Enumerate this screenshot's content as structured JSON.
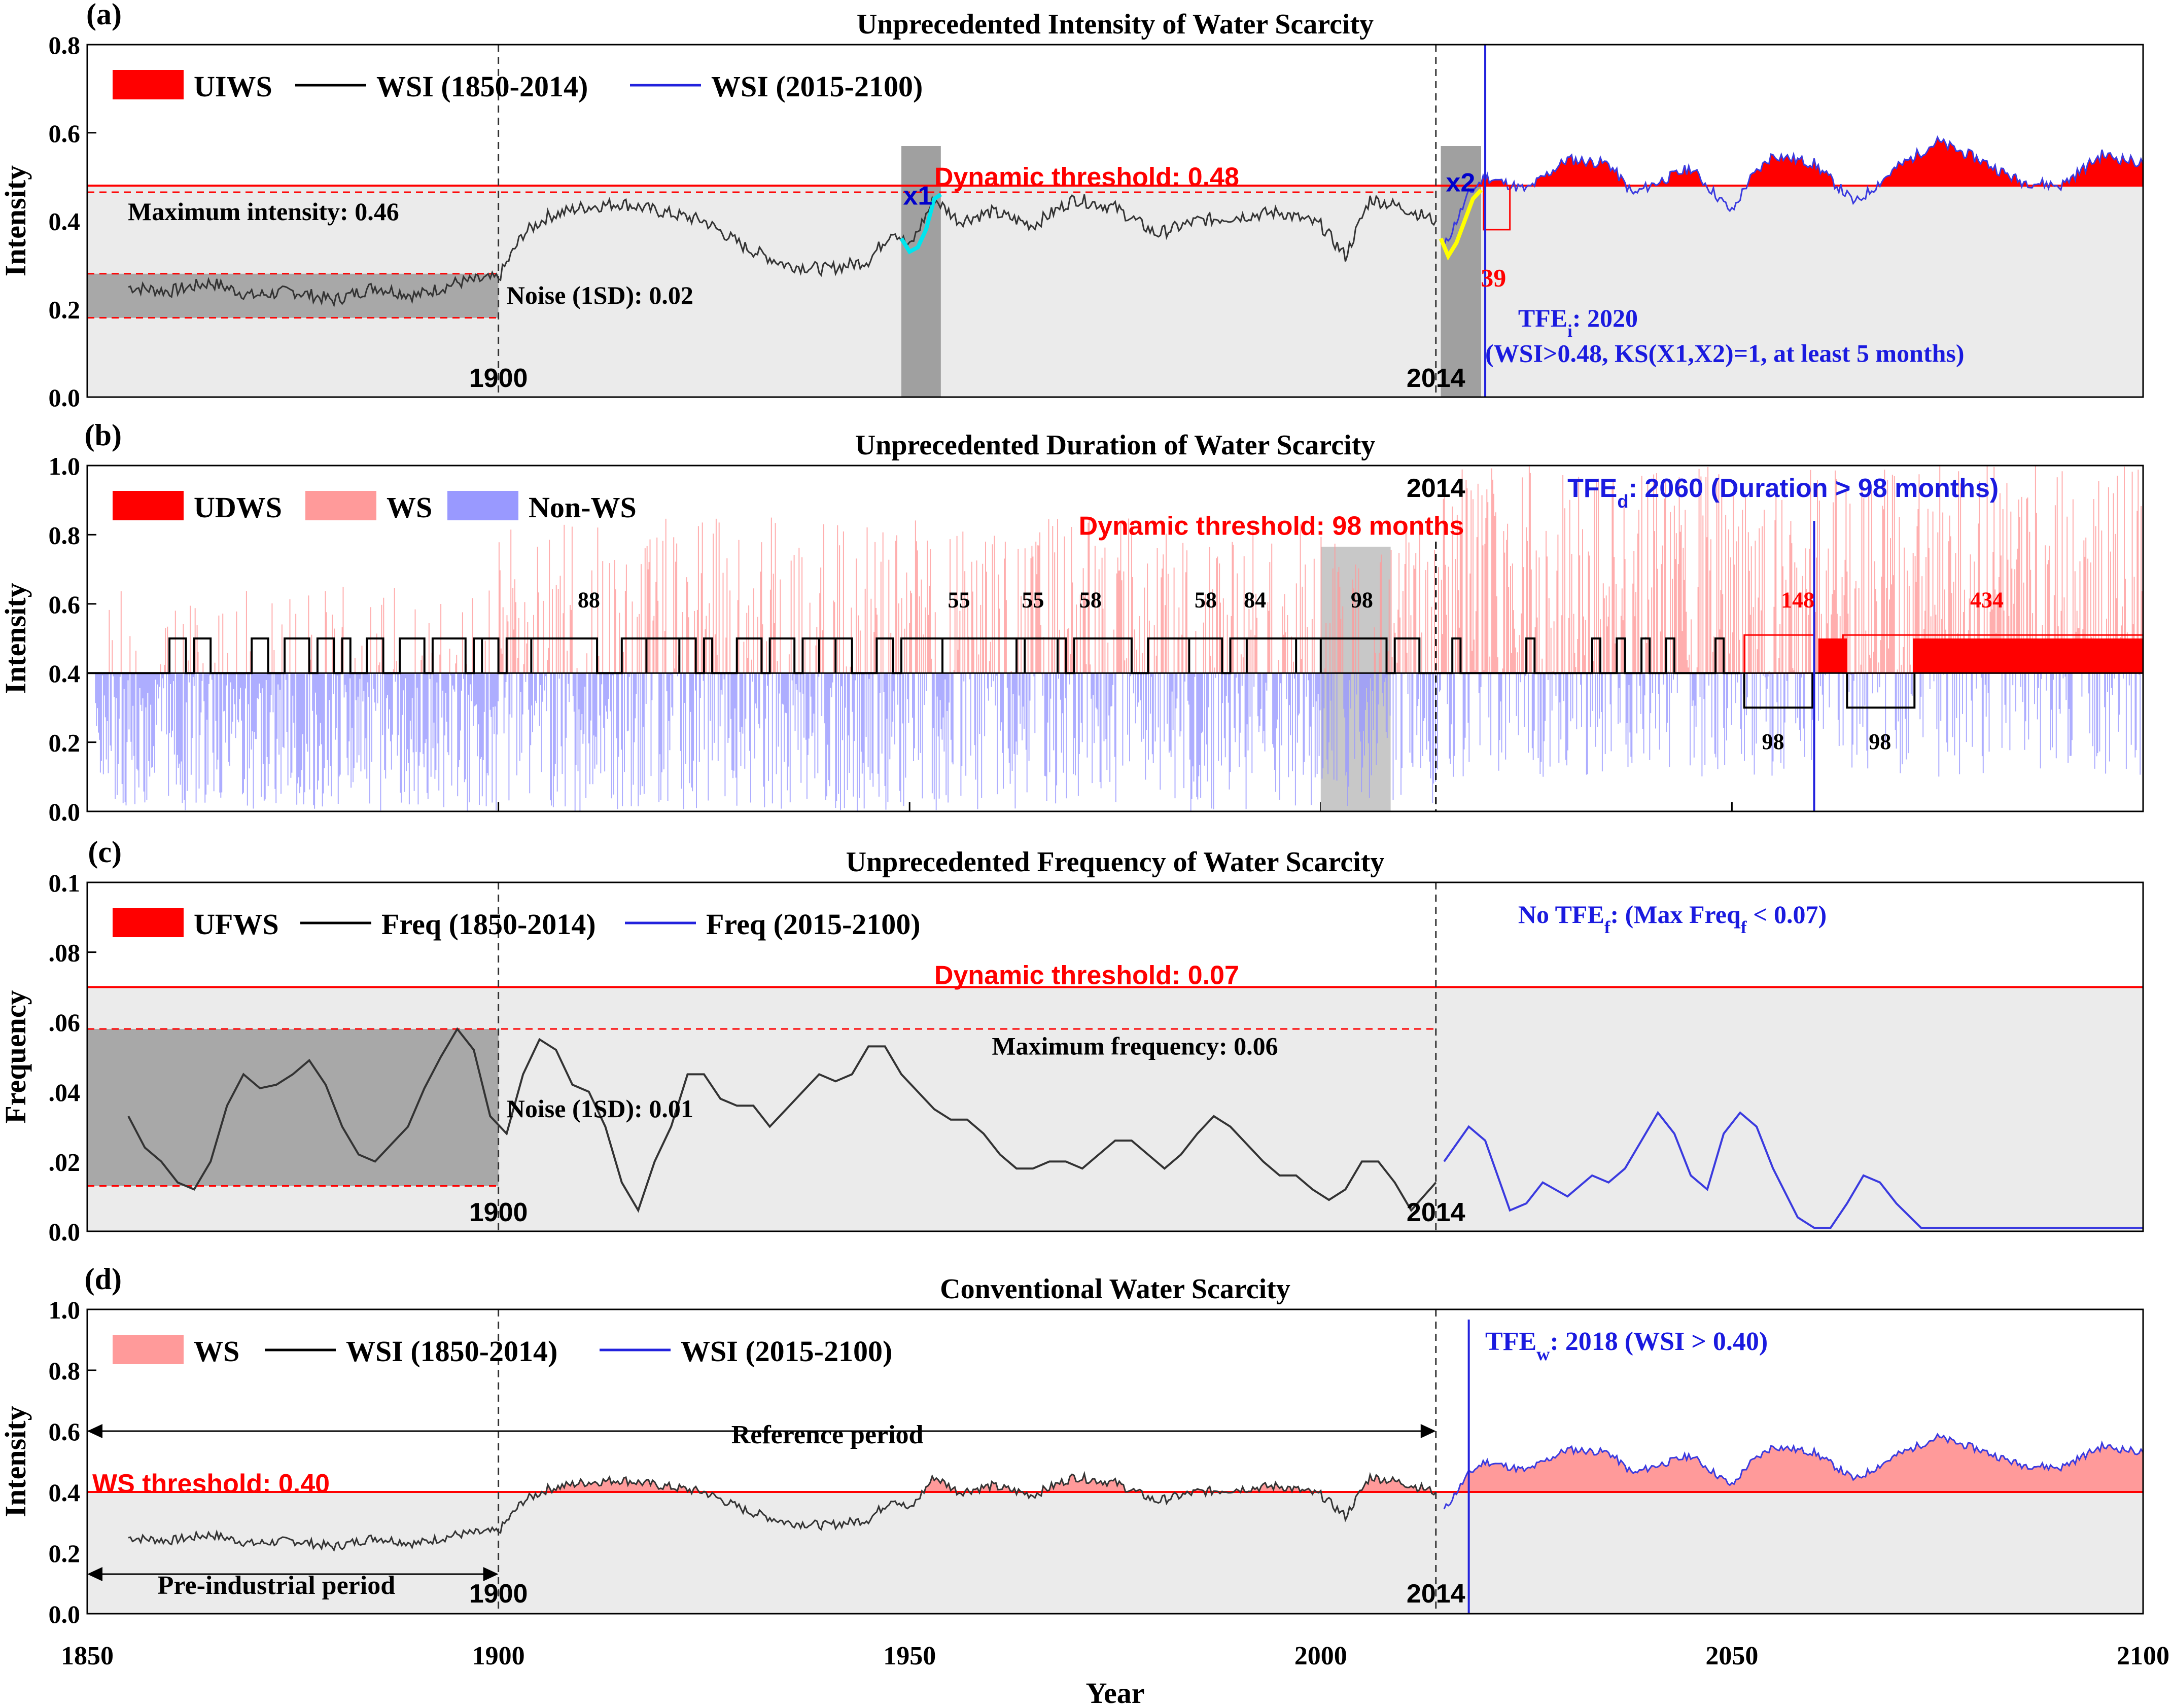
{
  "xaxis": {
    "label": "Year",
    "ticks": [
      "1850",
      "1900",
      "1950",
      "2000",
      "2050",
      "2100"
    ],
    "range": [
      1850,
      2100
    ]
  },
  "colors": {
    "red": "#ff0000",
    "blue": "#0000dd",
    "cyan": "#00e5ee",
    "yellow": "#ffff00",
    "pink": "#ff9a9a",
    "lightblue": "#9999ff",
    "shade": "#ebebeb",
    "darkshade": "#a8a8a8"
  },
  "chart_data": [
    {
      "panel": "(a)",
      "type": "line",
      "title": "Unprecedented Intensity of Water Scarcity",
      "ylabel": "Intensity",
      "ylim": [
        0,
        0.8
      ],
      "yticks": [
        "0.0",
        "0.2",
        "0.4",
        "0.6",
        "0.8"
      ],
      "legend": [
        "UIWS",
        "WSI (1850-2014)",
        "WSI (2015-2100)"
      ],
      "threshold": 0.48,
      "threshold_label": "Dynamic threshold: 0.48",
      "max_label": "Maximum intensity: 0.46",
      "noise_label": "Noise (1SD): 0.02",
      "year_marks": [
        "1900",
        "2014"
      ],
      "window_labels": [
        "x1",
        "x2"
      ],
      "box_label": "39",
      "tfe_label": "TFE",
      "tfe_sub": "i",
      "tfe_rest": ": 2020",
      "tfe_cond": "(WSI>0.48, KS(X1,X2)=1, at least 5 months)",
      "series": [
        {
          "name": "WSI (1850-2014)",
          "x": [
            1855,
            1860,
            1865,
            1870,
            1875,
            1880,
            1885,
            1890,
            1895,
            1900,
            1903,
            1906,
            1910,
            1915,
            1920,
            1925,
            1930,
            1935,
            1940,
            1945,
            1948,
            1950,
            1953,
            1956,
            1960,
            1965,
            1970,
            1975,
            1980,
            1985,
            1990,
            1995,
            2000,
            2003,
            2006,
            2010,
            2014
          ],
          "y": [
            0.25,
            0.24,
            0.26,
            0.23,
            0.24,
            0.22,
            0.25,
            0.23,
            0.26,
            0.27,
            0.37,
            0.41,
            0.43,
            0.44,
            0.42,
            0.4,
            0.34,
            0.3,
            0.29,
            0.31,
            0.38,
            0.34,
            0.45,
            0.4,
            0.42,
            0.39,
            0.45,
            0.43,
            0.37,
            0.4,
            0.41,
            0.42,
            0.39,
            0.32,
            0.45,
            0.43,
            0.4
          ]
        },
        {
          "name": "WSI (2015-2100)",
          "x": [
            2015,
            2018,
            2020,
            2025,
            2030,
            2035,
            2038,
            2040,
            2045,
            2050,
            2052,
            2055,
            2060,
            2065,
            2070,
            2075,
            2080,
            2085,
            2090,
            2095,
            2100
          ],
          "y": [
            0.34,
            0.46,
            0.5,
            0.47,
            0.54,
            0.53,
            0.46,
            0.48,
            0.52,
            0.42,
            0.49,
            0.55,
            0.53,
            0.44,
            0.52,
            0.58,
            0.54,
            0.49,
            0.48,
            0.55,
            0.53
          ]
        }
      ]
    },
    {
      "panel": "(b)",
      "type": "bar",
      "title": "Unprecedented Duration of Water Scarcity",
      "ylabel": "Intensity",
      "ylim": [
        0,
        1.0
      ],
      "yticks": [
        "0.0",
        "0.2",
        "0.4",
        "0.6",
        "0.8",
        "1.0"
      ],
      "legend": [
        "UDWS",
        "WS",
        "Non-WS"
      ],
      "threshold_label": "Dynamic threshold: 98 months",
      "tfe_label": "TFE",
      "tfe_sub": "d",
      "tfe_rest": ": 2060 (Duration > 98 months)",
      "year_mark": "2014",
      "duration_labels": [
        {
          "x": 1911,
          "v": "88"
        },
        {
          "x": 1956,
          "v": "55"
        },
        {
          "x": 1965,
          "v": "55"
        },
        {
          "x": 1972,
          "v": "58"
        },
        {
          "x": 1986,
          "v": "58"
        },
        {
          "x": 1992,
          "v": "84"
        },
        {
          "x": 2005,
          "v": "98"
        }
      ],
      "future_labels": [
        {
          "x": 2058,
          "v": "148"
        },
        {
          "x": 2081,
          "v": "434"
        }
      ],
      "window_labels": [
        {
          "x": 2055,
          "v": "98"
        },
        {
          "x": 2068,
          "v": "98"
        }
      ]
    },
    {
      "panel": "(c)",
      "type": "line",
      "title": "Unprecedented Frequency of Water Scarcity",
      "ylabel": "Frequency",
      "ylim": [
        0,
        0.1
      ],
      "yticks": [
        "0.0",
        ".02",
        ".04",
        ".06",
        ".08",
        "0.1"
      ],
      "legend": [
        "UFWS",
        "Freq (1850-2014)",
        "Freq (2015-2100)"
      ],
      "threshold": 0.07,
      "threshold_label": "Dynamic threshold: 0.07",
      "max_label": "Maximum frequency: 0.06",
      "noise_label": "Noise (1SD): 0.01",
      "year_marks": [
        "1900",
        "2014"
      ],
      "tfe_label": "No TFE",
      "tfe_sub": "f",
      "tfe_mid": ": (Max Freq",
      "tfe_sub2": "f",
      "tfe_rest": " < 0.07)",
      "series": [
        {
          "name": "Freq (1850-2014)",
          "x": [
            1855,
            1857,
            1859,
            1861,
            1863,
            1865,
            1867,
            1869,
            1871,
            1873,
            1875,
            1877,
            1879,
            1881,
            1883,
            1885,
            1887,
            1889,
            1891,
            1893,
            1895,
            1897,
            1899,
            1901,
            1903,
            1905,
            1907,
            1909,
            1911,
            1913,
            1915,
            1917,
            1919,
            1921,
            1923,
            1925,
            1927,
            1929,
            1931,
            1933,
            1935,
            1937,
            1939,
            1941,
            1943,
            1945,
            1947,
            1949,
            1951,
            1953,
            1955,
            1957,
            1959,
            1961,
            1963,
            1965,
            1967,
            1969,
            1971,
            1973,
            1975,
            1977,
            1979,
            1981,
            1983,
            1985,
            1987,
            1989,
            1991,
            1993,
            1995,
            1997,
            1999,
            2001,
            2003,
            2005,
            2007,
            2009,
            2011,
            2014
          ],
          "y": [
            0.033,
            0.024,
            0.02,
            0.014,
            0.012,
            0.02,
            0.036,
            0.045,
            0.041,
            0.042,
            0.045,
            0.049,
            0.042,
            0.03,
            0.022,
            0.02,
            0.025,
            0.03,
            0.041,
            0.05,
            0.058,
            0.052,
            0.033,
            0.028,
            0.045,
            0.055,
            0.052,
            0.042,
            0.04,
            0.03,
            0.014,
            0.006,
            0.02,
            0.03,
            0.045,
            0.045,
            0.038,
            0.036,
            0.036,
            0.03,
            0.035,
            0.04,
            0.045,
            0.043,
            0.045,
            0.053,
            0.053,
            0.045,
            0.04,
            0.035,
            0.032,
            0.032,
            0.028,
            0.022,
            0.018,
            0.018,
            0.02,
            0.02,
            0.018,
            0.022,
            0.026,
            0.026,
            0.022,
            0.018,
            0.022,
            0.028,
            0.033,
            0.03,
            0.025,
            0.02,
            0.016,
            0.016,
            0.012,
            0.009,
            0.012,
            0.02,
            0.02,
            0.014,
            0.006,
            0.014
          ]
        },
        {
          "name": "Freq (2015-2100)",
          "x": [
            2015,
            2018,
            2020,
            2023,
            2025,
            2027,
            2030,
            2033,
            2035,
            2037,
            2039,
            2041,
            2043,
            2045,
            2047,
            2049,
            2051,
            2053,
            2055,
            2058,
            2060,
            2062,
            2064,
            2066,
            2068,
            2070,
            2073,
            2075,
            2078,
            2080,
            2085,
            2090,
            2095,
            2100
          ],
          "y": [
            0.02,
            0.03,
            0.026,
            0.006,
            0.008,
            0.014,
            0.01,
            0.016,
            0.014,
            0.018,
            0.026,
            0.034,
            0.028,
            0.016,
            0.012,
            0.028,
            0.034,
            0.03,
            0.018,
            0.004,
            0.001,
            0.001,
            0.008,
            0.016,
            0.014,
            0.008,
            0.001,
            0.001,
            0.001,
            0.001,
            0.001,
            0.001,
            0.001,
            0.001
          ]
        }
      ]
    },
    {
      "panel": "(d)",
      "type": "line",
      "title": "Conventional Water Scarcity",
      "ylabel": "Intensity",
      "ylim": [
        0,
        1.0
      ],
      "yticks": [
        "0.0",
        "0.2",
        "0.4",
        "0.6",
        "0.8",
        "1.0"
      ],
      "legend": [
        "WS",
        "WSI (1850-2014)",
        "WSI (2015-2100)"
      ],
      "threshold": 0.4,
      "threshold_label": "WS threshold: 0.40",
      "ref_label": "Reference period",
      "pre_label": "Pre-industrial period",
      "year_marks": [
        "1900",
        "2014"
      ],
      "tfe_label": "TFE",
      "tfe_sub": "w",
      "tfe_rest": ": 2018 (WSI > 0.40)"
    }
  ]
}
